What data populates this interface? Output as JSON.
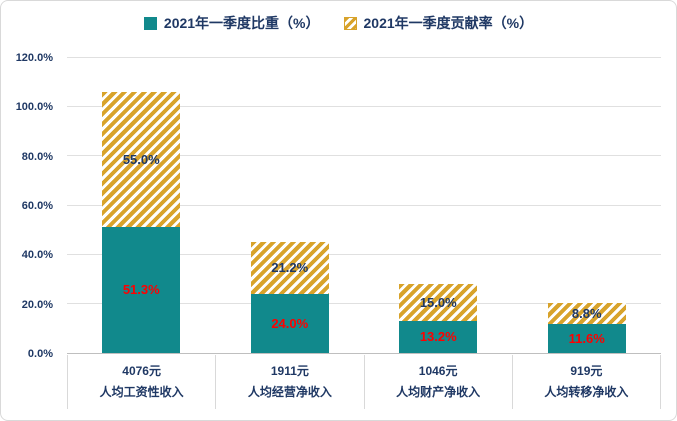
{
  "legend": {
    "items": [
      {
        "label": "2021年一季度比重（%）",
        "swatch": "teal-square"
      },
      {
        "label": "2021年一季度贡献率（%）",
        "swatch": "gold-hatch-square"
      }
    ]
  },
  "colors": {
    "teal": "#11898C",
    "gold": "#D8A32B",
    "label_red": "#FF0000",
    "label_navy": "#1F3864",
    "axis_text": "#1F3864",
    "gridline": "#E0E0E0",
    "axis_line": "#BFBFBF",
    "border": "#D9D9D9"
  },
  "y_axis": {
    "min": 0,
    "max": 120,
    "tick_values": [
      0,
      20,
      40,
      60,
      80,
      100,
      120
    ],
    "tick_labels": [
      "0.0%",
      "20.0%",
      "40.0%",
      "60.0%",
      "80.0%",
      "100.0%",
      "120.0%"
    ]
  },
  "chart_data": {
    "type": "bar",
    "stacked": true,
    "title": "",
    "categories": [
      "人均工资性收入",
      "人均经营净收入",
      "人均财产净收入",
      "人均转移净收入"
    ],
    "category_amounts": [
      "4076元",
      "1911元",
      "1046元",
      "919元"
    ],
    "series": [
      {
        "name": "2021年一季度比重（%）",
        "values": [
          51.3,
          24.0,
          13.2,
          11.6
        ],
        "labels": [
          "51.3%",
          "24.0%",
          "13.2%",
          "11.6%"
        ],
        "color": "#11898C",
        "pattern": "solid",
        "label_color": "#FF0000"
      },
      {
        "name": "2021年一季度贡献率（%）",
        "values": [
          55.0,
          21.2,
          15.0,
          8.8
        ],
        "labels": [
          "55.0%",
          "21.2%",
          "15.0%",
          "8.8%"
        ],
        "color": "#D8A32B",
        "pattern": "diagonal-hatch",
        "label_color": "#1F3864"
      }
    ],
    "ylim": [
      0,
      120
    ],
    "grid": true,
    "legend_position": "top"
  }
}
